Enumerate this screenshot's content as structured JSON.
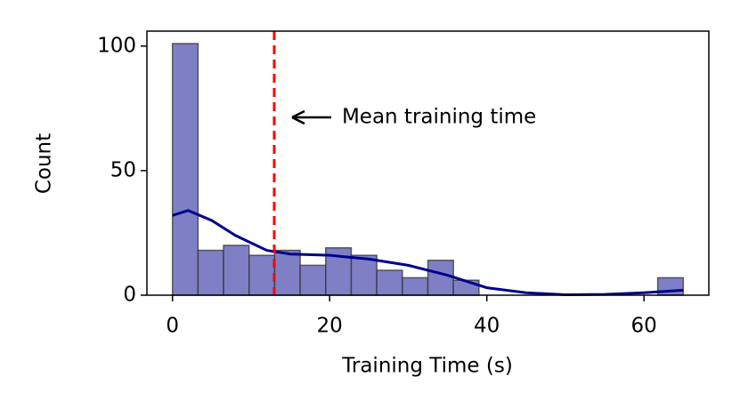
{
  "chart_data": {
    "type": "histogram",
    "xlabel": "Training Time (s)",
    "ylabel": "Count",
    "bins": [
      0,
      3.25,
      6.5,
      9.75,
      13,
      16.25,
      19.5,
      22.75,
      26,
      29.25,
      32.5,
      35.75,
      39,
      42.25,
      45.5,
      48.75,
      52,
      55.25,
      58.5,
      61.75,
      65
    ],
    "values": [
      101,
      18,
      20,
      16,
      18,
      12,
      19,
      16,
      10,
      7,
      14,
      6,
      0,
      0,
      0,
      0,
      0,
      0,
      0,
      7
    ],
    "color": "#7f7fc6",
    "kde": {
      "color": "#00008b",
      "x": [
        0,
        2,
        5,
        8,
        12,
        15,
        20,
        25,
        30,
        35,
        40,
        45,
        50,
        55,
        60,
        65
      ],
      "y": [
        32,
        34,
        30,
        24,
        18,
        16.5,
        16,
        14.5,
        12,
        8,
        3,
        1,
        0.2,
        0.3,
        1,
        2
      ]
    },
    "mean": 12.95,
    "mean_color": "#ff0000",
    "annotation": "Mean training time",
    "xlim": [
      -3.25,
      68.25
    ],
    "xticks": [
      0,
      20,
      40,
      60
    ],
    "ylim": [
      0,
      106
    ],
    "yticks": [
      0,
      50,
      100
    ]
  }
}
